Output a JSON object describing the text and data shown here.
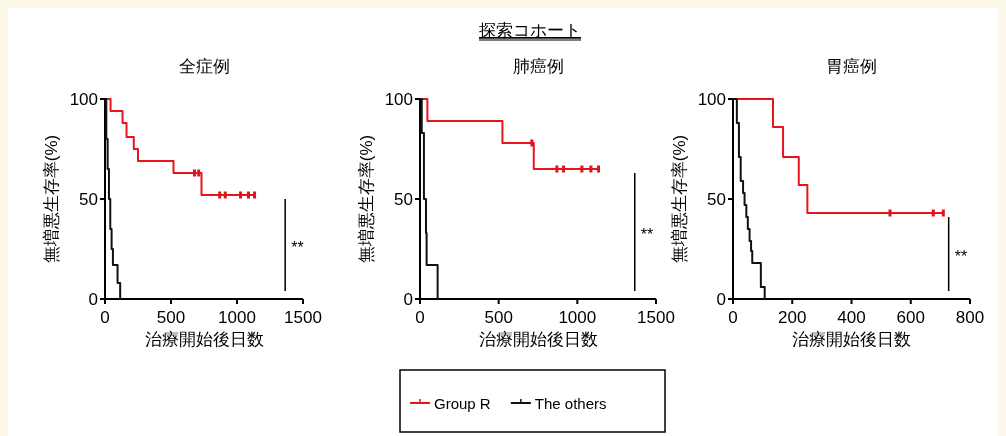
{
  "chart_data": [
    {
      "type": "other",
      "title": "探索コホート"
    },
    {
      "type": "step",
      "title": "全症例",
      "xlabel": "治療開始後日数",
      "ylabel": "無増悪生存率(%)",
      "xlim": [
        0,
        1500
      ],
      "xticks": [
        0,
        500,
        1000,
        1500
      ],
      "ylim": [
        0,
        100
      ],
      "yticks": [
        0,
        50,
        100
      ],
      "grid": false,
      "legend": "bottom",
      "annotations": [
        "**"
      ],
      "series": [
        {
          "name": "Group R",
          "color": "#e8141c",
          "x": [
            0,
            42,
            133,
            163,
            218,
            250,
            519,
            731,
            1133
          ],
          "values": [
            100,
            94,
            88,
            81,
            75,
            69,
            63,
            52,
            52
          ]
        },
        {
          "type": "scatter",
          "color": "#e0141c",
          "x": [
            678,
            710,
            869,
            911,
            1027,
            1087,
            1133
          ],
          "values": [
            63,
            63,
            52,
            52,
            52,
            52,
            52
          ]
        },
        {
          "name": "The others",
          "color": "#111111",
          "x": [
            0,
            10,
            20,
            30,
            40,
            50,
            60,
            95,
            115
          ],
          "values": [
            100,
            80,
            65,
            50,
            35,
            25,
            17,
            8,
            0
          ]
        }
      ]
    },
    {
      "type": "step",
      "title": "肺癌例",
      "xlabel": "治療開始後日数",
      "ylabel": "無増悪生存率(%)",
      "xlim": [
        0,
        1500
      ],
      "xticks": [
        0,
        500,
        1000,
        1500
      ],
      "ylim": [
        0,
        100
      ],
      "yticks": [
        0,
        50,
        100
      ],
      "grid": false,
      "legend": "bottom",
      "annotations": [
        "**"
      ],
      "series": [
        {
          "name": "Group R",
          "color": "#e8141c",
          "x": [
            0,
            47,
            524,
            723,
            1135
          ],
          "values": [
            100,
            89,
            78,
            65,
            65
          ]
        },
        {
          "type": "scatter",
          "color": "#e0141c",
          "x": [
            711,
            870,
            912,
            1029,
            1086,
            1135
          ],
          "values": [
            78,
            65,
            65,
            65,
            65,
            65
          ]
        },
        {
          "name": "The others",
          "color": "#111111",
          "x": [
            0,
            11,
            25,
            38,
            42,
            112
          ],
          "values": [
            100,
            83,
            50,
            33,
            17,
            0
          ]
        }
      ]
    },
    {
      "type": "step",
      "title": "胃癌例",
      "xlabel": "治療開始後日数",
      "ylabel": "無増悪生存率(%)",
      "xlim": [
        0,
        800
      ],
      "xticks": [
        0,
        200,
        400,
        600,
        800
      ],
      "ylim": [
        0,
        100
      ],
      "yticks": [
        0,
        50,
        100
      ],
      "grid": false,
      "legend": "bottom",
      "annotations": [
        "**"
      ],
      "series": [
        {
          "name": "Group R",
          "color": "#e8141c",
          "x": [
            0,
            135,
            169,
            222,
            251,
            710
          ],
          "values": [
            100,
            86,
            71,
            57,
            43,
            43
          ]
        },
        {
          "type": "scatter",
          "color": "#e0141c",
          "x": [
            530,
            676,
            710
          ],
          "values": [
            43,
            43,
            43
          ]
        },
        {
          "name": "The others",
          "color": "#111111",
          "x": [
            0,
            13,
            20,
            26,
            34,
            39,
            45,
            50,
            56,
            61,
            65,
            94,
            107
          ],
          "values": [
            100,
            88,
            71,
            59,
            53,
            47,
            41,
            35,
            29,
            24,
            18,
            6,
            0
          ]
        }
      ]
    }
  ]
}
